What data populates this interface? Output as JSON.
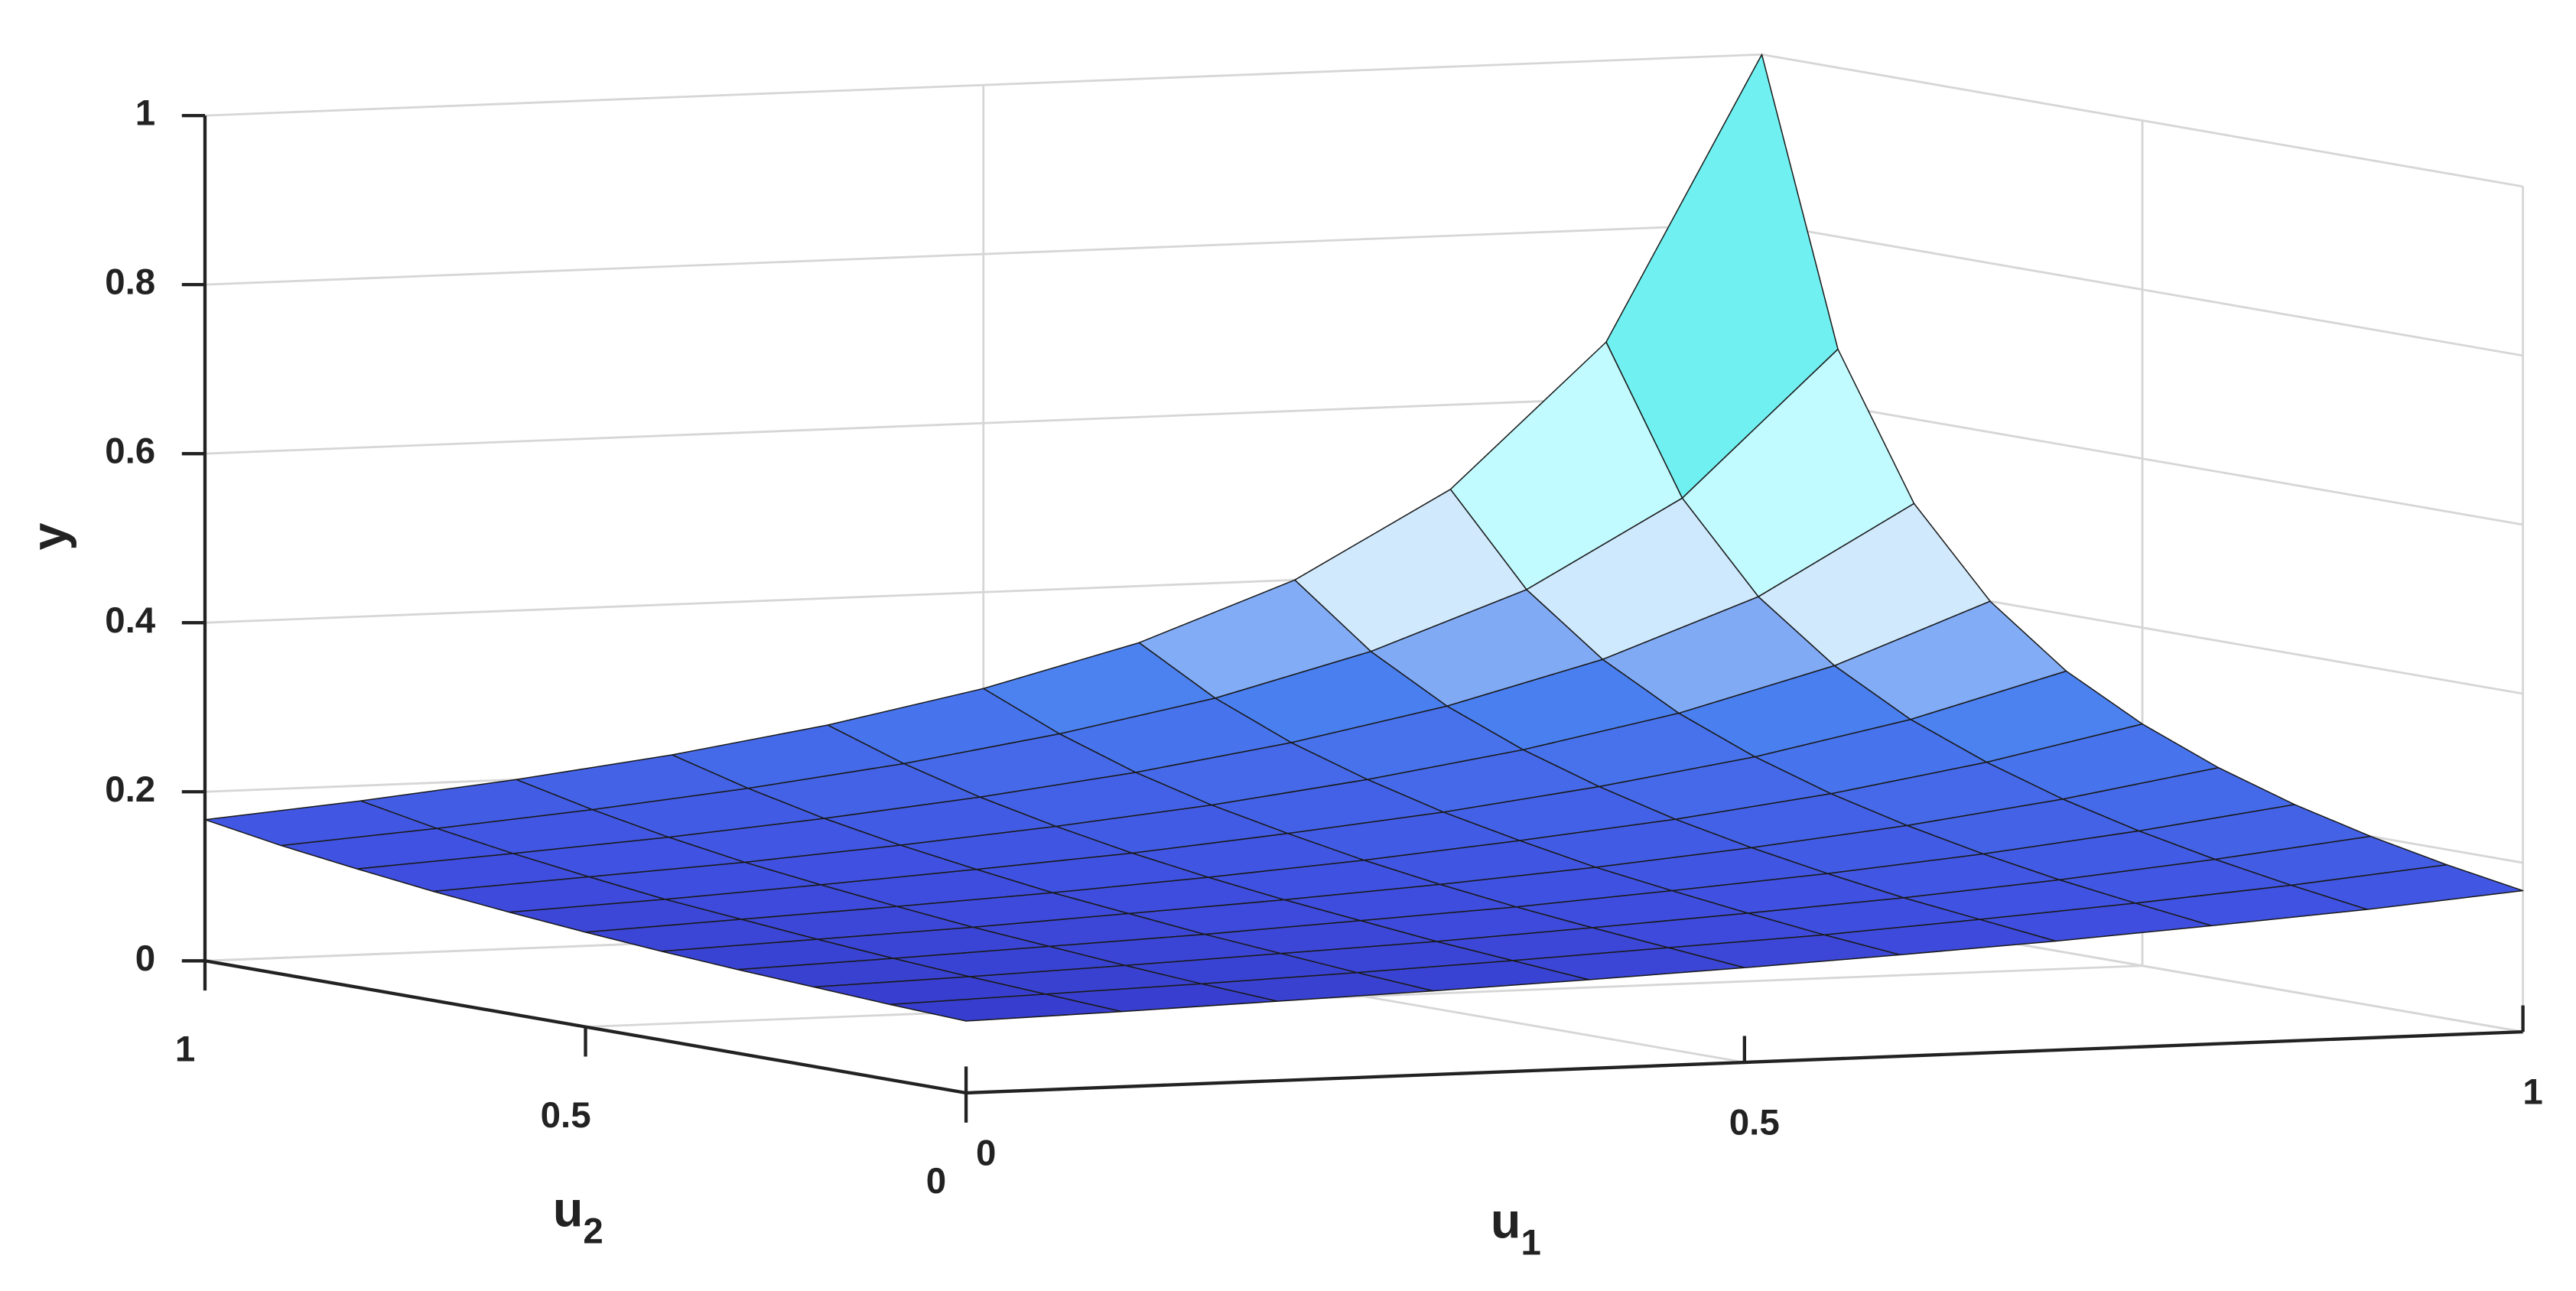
{
  "chart_data": {
    "type": "surface",
    "xlabel": {
      "text": "u",
      "subscript": "1"
    },
    "ylabel": {
      "text": "u",
      "subscript": "2"
    },
    "zlabel": "y",
    "x": [
      0,
      0.1,
      0.2,
      0.3,
      0.4,
      0.5,
      0.6,
      0.7,
      0.8,
      0.9,
      1
    ],
    "y": [
      0,
      0.1,
      0.2,
      0.3,
      0.4,
      0.5,
      0.6,
      0.7,
      0.8,
      0.9,
      1
    ],
    "z": [
      [
        0.085,
        0.089,
        0.094,
        0.099,
        0.105,
        0.112,
        0.12,
        0.129,
        0.14,
        0.152,
        0.167
      ],
      [
        0.089,
        0.094,
        0.099,
        0.105,
        0.112,
        0.12,
        0.128,
        0.139,
        0.151,
        0.165,
        0.182
      ],
      [
        0.094,
        0.099,
        0.105,
        0.112,
        0.119,
        0.128,
        0.138,
        0.149,
        0.163,
        0.18,
        0.2
      ],
      [
        0.099,
        0.105,
        0.112,
        0.119,
        0.128,
        0.137,
        0.149,
        0.162,
        0.178,
        0.198,
        0.222
      ],
      [
        0.105,
        0.112,
        0.119,
        0.128,
        0.137,
        0.148,
        0.161,
        0.177,
        0.196,
        0.22,
        0.25
      ],
      [
        0.112,
        0.12,
        0.128,
        0.137,
        0.148,
        0.161,
        0.177,
        0.195,
        0.218,
        0.248,
        0.286
      ],
      [
        0.12,
        0.128,
        0.138,
        0.149,
        0.161,
        0.177,
        0.195,
        0.218,
        0.246,
        0.283,
        0.333
      ],
      [
        0.129,
        0.139,
        0.149,
        0.162,
        0.177,
        0.195,
        0.218,
        0.246,
        0.282,
        0.331,
        0.4
      ],
      [
        0.14,
        0.151,
        0.163,
        0.178,
        0.196,
        0.218,
        0.246,
        0.282,
        0.33,
        0.397,
        0.5
      ],
      [
        0.152,
        0.165,
        0.18,
        0.198,
        0.22,
        0.248,
        0.283,
        0.331,
        0.397,
        0.498,
        0.667
      ],
      [
        0.167,
        0.182,
        0.2,
        0.222,
        0.25,
        0.286,
        0.333,
        0.4,
        0.5,
        0.667,
        1
      ]
    ],
    "xlim": [
      0,
      1
    ],
    "ylim": [
      0,
      1
    ],
    "zlim": [
      0,
      1
    ],
    "xticks": [
      0,
      0.5,
      1
    ],
    "yticks": [
      0,
      0.5,
      1
    ],
    "zticks": [
      0,
      0.2,
      0.4,
      0.6,
      0.8,
      1
    ],
    "grid": true,
    "colormap": [
      "#2a20b0",
      "#3f4fe0",
      "#4a7ff0",
      "#e8fcff",
      "#a8fbff",
      "#6ef0f0",
      "#70c890",
      "#a8a020"
    ]
  }
}
